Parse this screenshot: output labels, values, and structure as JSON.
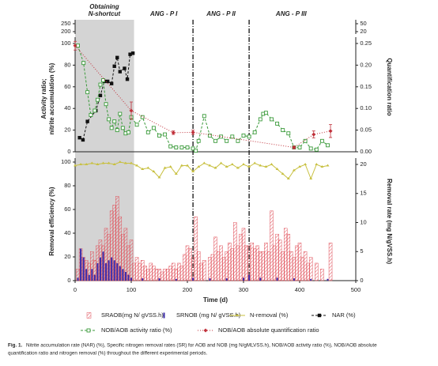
{
  "chart_data": [
    {
      "type": "line",
      "phases": [
        "Obtaining",
        "N-shortcut",
        "ANG - P I",
        "ANG - P II",
        "ANG - P III"
      ],
      "shaded_range": [
        0,
        105
      ],
      "phase_lines": [
        210,
        310
      ],
      "xlim": [
        0,
        500
      ],
      "ylabel": [
        "Activity ratio;",
        "nitrite accumulation (%)"
      ],
      "y2label": "Quantification ratio",
      "ylim": [
        0,
        100
      ],
      "yticks": [
        0,
        20,
        40,
        60,
        80,
        100
      ],
      "ybreak_lim": [
        200,
        250
      ],
      "ybreak_ticks": [
        200,
        250
      ],
      "y2lim": [
        0,
        0.25
      ],
      "y2ticks": [
        {
          "value": 0,
          "label": "0.00"
        },
        0.05,
        {
          "value": 0.1,
          "label": "0.10"
        },
        0.15,
        {
          "value": 0.2,
          "label": "0.20"
        },
        0.25
      ],
      "y2break_lim": [
        20,
        50
      ],
      "y2break_ticks": [
        20,
        50
      ],
      "series": [
        {
          "name": "NAR (%)",
          "color": "#111111",
          "marker": "square-filled",
          "dash": "3,2",
          "x": [
            8,
            14,
            22,
            37,
            45,
            52,
            58,
            65,
            70,
            75,
            80,
            88,
            93,
            98,
            103
          ],
          "values": [
            13,
            11,
            28,
            38,
            52,
            65,
            65,
            63,
            79,
            87,
            74,
            77,
            67,
            90,
            91
          ]
        },
        {
          "name": "NOB/AOB activity ratio (%)",
          "color": "#3a9a3a",
          "marker": "square-open",
          "dash": "3,2",
          "x": [
            5,
            15,
            22,
            28,
            35,
            40,
            45,
            50,
            55,
            60,
            65,
            70,
            75,
            80,
            85,
            90,
            95,
            100,
            110,
            120,
            130,
            140,
            150,
            160,
            170,
            180,
            190,
            200,
            210,
            215,
            220,
            230,
            240,
            250,
            260,
            270,
            280,
            290,
            300,
            310,
            320,
            330,
            335,
            340,
            350,
            360,
            370,
            380,
            390,
            400,
            410,
            420,
            430,
            440,
            450
          ],
          "values": [
            98,
            82,
            55,
            34,
            38,
            48,
            62,
            66,
            44,
            30,
            22,
            28,
            20,
            35,
            22,
            17,
            18,
            32,
            25,
            32,
            18,
            22,
            15,
            16,
            5,
            4,
            4,
            4,
            3,
            1,
            10,
            33,
            15,
            10,
            14,
            10,
            14,
            10,
            15,
            14,
            18,
            30,
            35,
            36,
            30,
            26,
            20,
            17,
            4,
            4,
            10,
            3,
            2,
            10,
            6
          ]
        },
        {
          "name": "NOB/AOB absolute quantification ratio",
          "color": "#c0303a",
          "marker": "diamond",
          "dash": "1,2",
          "axis": "y2",
          "x": [
            0,
            100,
            175,
            210,
            390,
            425,
            455
          ],
          "values": [
            0.245,
            0.095,
            0.044,
            0.045,
            0.01,
            0.04,
            0.048
          ],
          "errors": [
            0.01,
            0.02,
            0.004,
            0.005,
            0.003,
            0.008,
            0.015
          ]
        }
      ]
    },
    {
      "type": "bar",
      "xlabel": "Time (d)",
      "xlim": [
        0,
        500
      ],
      "xticks": [
        0,
        100,
        200,
        300,
        400,
        500
      ],
      "ylabel": "Removal efficiency (%)",
      "ylim": [
        0,
        100
      ],
      "yticks": [
        0,
        20,
        40,
        60,
        80,
        100
      ],
      "y2label": "Removal rate (mg N/gVSS.h)",
      "y2lim": [
        0,
        20
      ],
      "y2ticks": [
        0,
        5,
        10,
        15,
        20
      ],
      "series": [
        {
          "name": "SRAOB(mg N/ gVSS.h)",
          "color": "#e0505a",
          "kind": "bar-hatched",
          "axis": "y2",
          "x": [
            5,
            10,
            15,
            20,
            25,
            30,
            35,
            40,
            45,
            50,
            55,
            60,
            65,
            70,
            75,
            80,
            85,
            90,
            95,
            100,
            105,
            110,
            115,
            120,
            125,
            130,
            135,
            140,
            145,
            150,
            155,
            160,
            165,
            170,
            175,
            180,
            185,
            190,
            195,
            200,
            205,
            210,
            215,
            220,
            225,
            230,
            240,
            245,
            250,
            255,
            260,
            265,
            270,
            275,
            280,
            285,
            290,
            295,
            300,
            305,
            310,
            315,
            320,
            325,
            330,
            335,
            340,
            345,
            350,
            355,
            360,
            365,
            370,
            375,
            380,
            385,
            390,
            395,
            400,
            405,
            410,
            415,
            420,
            430,
            440,
            455
          ],
          "values": [
            2,
            5.5,
            4,
            3.5,
            3,
            5,
            3.5,
            6,
            7,
            6,
            9,
            8,
            12,
            13,
            14.5,
            11,
            8,
            9,
            6,
            7,
            3,
            4,
            3,
            3.5,
            2.5,
            2,
            3,
            2.5,
            2,
            2,
            1.5,
            2,
            2,
            2.5,
            3,
            2,
            3,
            2.5,
            4.5,
            6,
            5.5,
            4,
            11,
            5,
            3,
            3.5,
            4,
            4.5,
            7.5,
            5,
            6,
            4,
            5,
            6.5,
            5.5,
            10,
            6,
            8,
            9,
            6,
            6,
            6.5,
            5.5,
            6,
            5,
            5,
            6.5,
            5,
            12,
            6,
            8,
            7,
            5,
            9,
            8,
            5,
            4,
            6,
            6.5,
            4,
            5,
            3,
            4,
            3,
            2,
            6.5
          ]
        },
        {
          "name": "SRNOB (mg N/ gVSS.h)",
          "color": "#3a2aa8",
          "kind": "bar",
          "axis": "y2",
          "x": [
            5,
            10,
            15,
            20,
            25,
            30,
            35,
            40,
            45,
            50,
            55,
            60,
            65,
            70,
            75,
            80,
            85,
            90,
            95,
            100,
            120,
            150,
            180,
            210,
            240,
            270,
            300,
            310,
            330,
            360,
            390,
            420,
            450
          ],
          "values": [
            0.5,
            5.5,
            4,
            2,
            1,
            2,
            1,
            3,
            4,
            5,
            3,
            3.5,
            4,
            3.5,
            3,
            2.5,
            2,
            1.5,
            1,
            0.5,
            0.4,
            0.4,
            0.3,
            0.5,
            0.4,
            0.4,
            0.5,
            1,
            0.5,
            0.5,
            0.4,
            0.3,
            0.3
          ]
        },
        {
          "name": "N-removal (%)",
          "color": "#c8c040",
          "kind": "line",
          "x": [
            0,
            10,
            20,
            30,
            40,
            50,
            60,
            70,
            80,
            90,
            100,
            110,
            120,
            130,
            140,
            150,
            160,
            170,
            180,
            190,
            200,
            210,
            220,
            230,
            240,
            250,
            260,
            270,
            280,
            290,
            300,
            310,
            320,
            330,
            340,
            350,
            360,
            370,
            380,
            390,
            400,
            410,
            420,
            430,
            440,
            450
          ],
          "values": [
            97,
            98,
            98,
            99,
            98,
            99,
            99,
            98,
            100,
            99,
            99,
            97,
            94,
            95,
            92,
            87,
            95,
            96,
            90,
            97,
            97,
            92,
            96,
            99,
            97,
            95,
            99,
            96,
            98,
            95,
            98,
            96,
            99,
            97,
            96,
            98,
            94,
            90,
            86,
            93,
            96,
            98,
            86,
            98,
            96,
            97
          ]
        }
      ]
    }
  ],
  "caption": {
    "label": "Fig. 1.",
    "lines": [
      "Nitrite accumulation rate (NAR) (%), Specific nitrogen removal rates (SR) for AOB and NOB (mg N/gMLVSS.h), NOB/AOB activity ratio (%), NOB/AOB absolute",
      "quantification ratio and nitrogen removal (%) throughout the different experimental periods."
    ]
  }
}
